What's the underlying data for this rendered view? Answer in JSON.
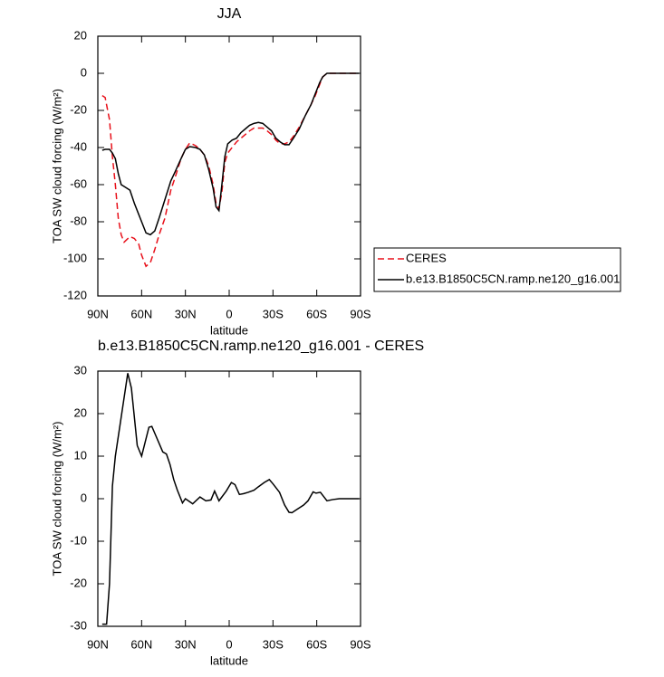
{
  "chart_data": [
    {
      "type": "line",
      "title": "JJA",
      "xlabel": "latitude",
      "ylabel": "TOA SW cloud forcing (W/m²)",
      "x": [
        87,
        85,
        82,
        80,
        78,
        76,
        74,
        72,
        68,
        65,
        62,
        60,
        57,
        54,
        51,
        48,
        44,
        40,
        37,
        33,
        30,
        27,
        23,
        20,
        17,
        14,
        11,
        9,
        7,
        5,
        3,
        1,
        -2,
        -5,
        -8,
        -11,
        -14,
        -17,
        -20,
        -23,
        -26,
        -29,
        -32,
        -35,
        -38,
        -41,
        -44,
        -48,
        -52,
        -56,
        -59,
        -62,
        -64,
        -67,
        -70,
        -75,
        -80,
        -85,
        -89
      ],
      "xlim": [
        90,
        -90
      ],
      "xticks": [
        {
          "value": 90,
          "label": "90N"
        },
        {
          "value": 60,
          "label": "60N"
        },
        {
          "value": 30,
          "label": "30N"
        },
        0,
        {
          "value": -30,
          "label": "30S"
        },
        {
          "value": -60,
          "label": "60S"
        },
        {
          "value": -90,
          "label": "90S"
        }
      ],
      "ylim": [
        -120,
        20
      ],
      "yticks": [
        -120,
        -100,
        -80,
        -60,
        -40,
        -20,
        0,
        20
      ],
      "legend": "right",
      "series": [
        {
          "name": "CERES",
          "color": "#e8101a",
          "dash": "dashed",
          "values": [
            -12,
            -13,
            -25,
            -45,
            -60,
            -78,
            -87,
            -91,
            -88,
            -89,
            -92,
            -98,
            -104,
            -102,
            -95,
            -87,
            -78,
            -63,
            -56,
            -46,
            -41,
            -37.5,
            -39,
            -41,
            -44,
            -50,
            -60,
            -70,
            -73,
            -64,
            -48,
            -43,
            -40,
            -37,
            -35,
            -33,
            -31,
            -29.5,
            -29.5,
            -29.5,
            -31,
            -33,
            -36,
            -38,
            -38,
            -37,
            -34,
            -29,
            -23,
            -17,
            -12,
            -6,
            -2,
            0,
            0,
            0,
            0,
            0,
            0
          ]
        },
        {
          "name": "b.e13.B1850C5CN.ramp.ne120_g16.001",
          "color": "#000000",
          "dash": "solid",
          "values": [
            -41.5,
            -41,
            -41,
            -43,
            -46,
            -54,
            -60,
            -61,
            -63,
            -70,
            -76,
            -80,
            -86,
            -87,
            -85,
            -78,
            -68,
            -58,
            -53,
            -46,
            -41,
            -39.5,
            -40,
            -41,
            -44,
            -52,
            -62,
            -72,
            -74,
            -60,
            -45,
            -38,
            -36,
            -35,
            -32,
            -30,
            -28,
            -27,
            -26.5,
            -27,
            -29,
            -31,
            -35,
            -37,
            -38.5,
            -38.5,
            -35,
            -30,
            -23,
            -17,
            -11,
            -5,
            -2,
            0,
            0,
            0,
            0,
            0,
            0
          ]
        }
      ]
    },
    {
      "type": "line",
      "title": "b.e13.B1850C5CN.ramp.ne120_g16.001 - CERES",
      "xlabel": "latitude",
      "ylabel": "TOA SW cloud forcing (W/m²)",
      "x": [
        87,
        84,
        82,
        80,
        78,
        74.5,
        69.5,
        67,
        63,
        60,
        55,
        53,
        50.5,
        45.5,
        43,
        40.5,
        38,
        35.5,
        32,
        30,
        25,
        20,
        16,
        12.5,
        10,
        7,
        2,
        -1.5,
        -4,
        -7,
        -10,
        -13,
        -17,
        -20,
        -24,
        -27.5,
        -30,
        -34.5,
        -38,
        -41,
        -43,
        -46.5,
        -51,
        -54,
        -57.5,
        -59.5,
        -62.5,
        -67,
        -71,
        -75.5,
        -82,
        -89
      ],
      "xlim": [
        90,
        -90
      ],
      "xticks": [
        {
          "value": 90,
          "label": "90N"
        },
        {
          "value": 60,
          "label": "60N"
        },
        {
          "value": 30,
          "label": "30N"
        },
        0,
        {
          "value": -30,
          "label": "30S"
        },
        {
          "value": -60,
          "label": "60S"
        },
        {
          "value": -90,
          "label": "90S"
        }
      ],
      "ylim": [
        -30,
        30
      ],
      "yticks": [
        -30,
        -20,
        -10,
        0,
        10,
        20,
        30
      ],
      "series": [
        {
          "color": "#000000",
          "dash": "solid",
          "values": [
            -29.5,
            -29.5,
            -20,
            3,
            10,
            18,
            29.5,
            26,
            12.5,
            10,
            16.8,
            17,
            15,
            11,
            10.5,
            8,
            4.5,
            2,
            -1,
            0,
            -1.2,
            0.4,
            -0.5,
            -0.3,
            1.8,
            -0.5,
            1.8,
            3.8,
            3.3,
            1,
            1.2,
            1.5,
            2,
            2.8,
            3.8,
            4.5,
            3.5,
            1.5,
            -1.5,
            -3.2,
            -3.3,
            -2.5,
            -1.5,
            -0.5,
            1.6,
            1.3,
            1.5,
            -0.5,
            -0.2,
            0,
            0,
            0
          ]
        }
      ]
    }
  ]
}
